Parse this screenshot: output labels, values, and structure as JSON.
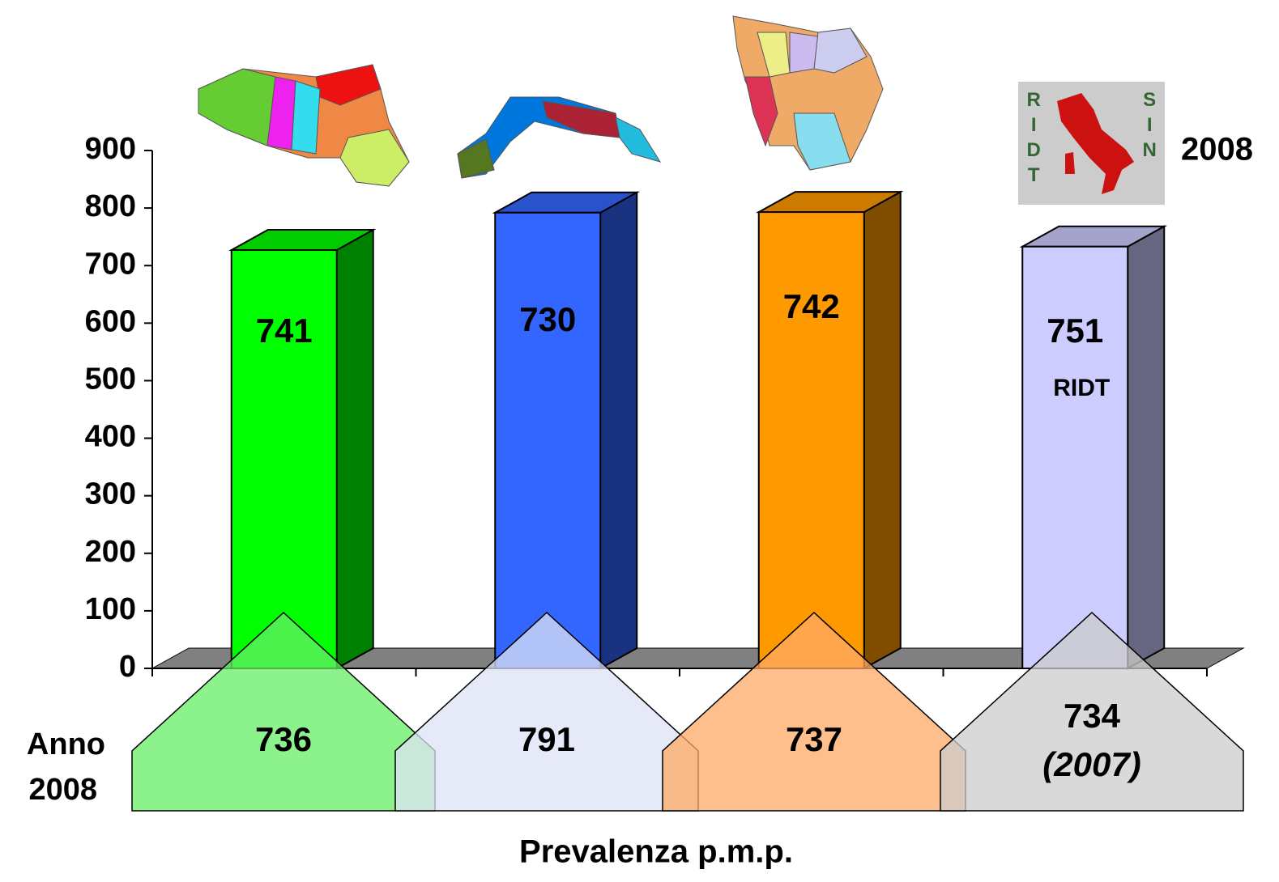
{
  "chart_data": {
    "type": "bar3d",
    "categories": [
      null,
      null,
      null,
      null
    ],
    "values": [
      727,
      792,
      793,
      733
    ],
    "colors": [
      "#00ff00",
      "#3366ff",
      "#ff9900",
      "#ccccff"
    ],
    "side_colors": [
      "#008000",
      "#1a3380",
      "#804c00",
      "#666680"
    ],
    "top_colors": [
      "#00cc00",
      "#2952cc",
      "#cc7a00",
      "#a3a3cc"
    ],
    "ylim": [
      0,
      900
    ],
    "yticks": [
      0,
      100,
      200,
      300,
      400,
      500,
      600,
      700,
      800,
      900
    ],
    "bar_annotations": [
      "741",
      "730",
      "742",
      "751"
    ],
    "bar_note": "RIDT",
    "bottom_annotations": [
      "736",
      "791",
      "737",
      "734"
    ],
    "bottom_note": "(2007)",
    "bottom_colors": [
      "#66ee66",
      "#dde3f5",
      "#ffaa66",
      "#cccccc"
    ],
    "row_label": [
      "Anno",
      "2008"
    ],
    "logo_left": "RIDT",
    "logo_right": "SIN",
    "logo_year": "2008",
    "xlabel": "Prevalenza p.m.p."
  }
}
